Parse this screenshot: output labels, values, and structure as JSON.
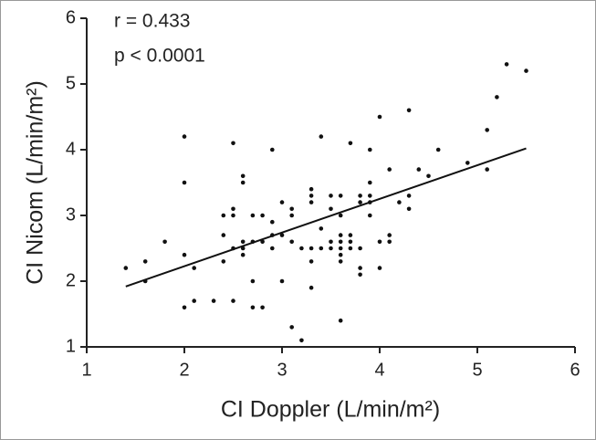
{
  "chart_data": {
    "type": "scatter",
    "xlabel": "CI Doppler (L/min/m²)",
    "ylabel": "CI Nicom (L/min/m²)",
    "annotations": [
      "r = 0.433",
      "p < 0.0001"
    ],
    "xlim": [
      1,
      6
    ],
    "ylim": [
      1,
      6
    ],
    "xticks": [
      1,
      2,
      3,
      4,
      5,
      6
    ],
    "yticks": [
      1,
      2,
      3,
      4,
      5,
      6
    ],
    "color": "#111111",
    "x": [
      1.4,
      1.6,
      1.6,
      1.8,
      2.0,
      2.0,
      2.0,
      2.0,
      2.1,
      2.1,
      2.3,
      2.4,
      2.4,
      2.4,
      2.5,
      2.5,
      2.5,
      2.5,
      2.5,
      2.6,
      2.6,
      2.6,
      2.6,
      2.6,
      2.7,
      2.7,
      2.7,
      2.7,
      2.8,
      2.8,
      2.8,
      2.9,
      2.9,
      2.9,
      2.9,
      3.0,
      3.0,
      3.0,
      3.1,
      3.1,
      3.1,
      3.1,
      3.2,
      3.2,
      3.3,
      3.3,
      3.3,
      3.3,
      3.3,
      3.3,
      3.4,
      3.4,
      3.4,
      3.5,
      3.5,
      3.5,
      3.5,
      3.6,
      3.6,
      3.6,
      3.6,
      3.6,
      3.6,
      3.6,
      3.6,
      3.7,
      3.7,
      3.7,
      3.7,
      3.8,
      3.8,
      3.8,
      3.8,
      3.8,
      3.9,
      3.9,
      3.9,
      3.9,
      3.9,
      4.0,
      4.0,
      4.0,
      4.1,
      4.1,
      4.1,
      4.2,
      4.3,
      4.3,
      4.3,
      4.4,
      4.5,
      4.6,
      4.9,
      5.1,
      5.1,
      5.2,
      5.3,
      5.5
    ],
    "y": [
      2.2,
      2.3,
      2.0,
      2.6,
      4.2,
      3.5,
      2.4,
      1.6,
      2.2,
      1.7,
      1.7,
      3.0,
      2.7,
      2.3,
      4.1,
      3.1,
      3.0,
      2.5,
      1.7,
      3.6,
      3.5,
      2.6,
      2.5,
      2.4,
      3.0,
      2.6,
      2.0,
      1.6,
      3.0,
      2.6,
      1.6,
      4.0,
      2.9,
      2.7,
      2.5,
      3.2,
      2.7,
      2.0,
      3.1,
      3.0,
      2.6,
      1.3,
      2.5,
      1.1,
      3.4,
      3.3,
      3.2,
      2.5,
      2.3,
      1.9,
      4.2,
      2.8,
      2.5,
      3.3,
      3.1,
      2.6,
      2.5,
      3.3,
      3.0,
      2.7,
      2.6,
      2.5,
      2.4,
      2.3,
      1.4,
      4.1,
      2.7,
      2.6,
      2.5,
      3.3,
      3.2,
      2.5,
      2.2,
      2.1,
      4.0,
      3.5,
      3.3,
      3.2,
      3.0,
      4.5,
      2.6,
      2.2,
      3.7,
      2.7,
      2.6,
      3.2,
      4.6,
      3.3,
      3.1,
      3.7,
      3.6,
      4.0,
      3.8,
      4.3,
      3.7,
      4.8,
      5.3,
      5.2
    ],
    "fit": {
      "x": [
        1.4,
        5.5
      ],
      "y": [
        1.92,
        4.02
      ]
    }
  }
}
